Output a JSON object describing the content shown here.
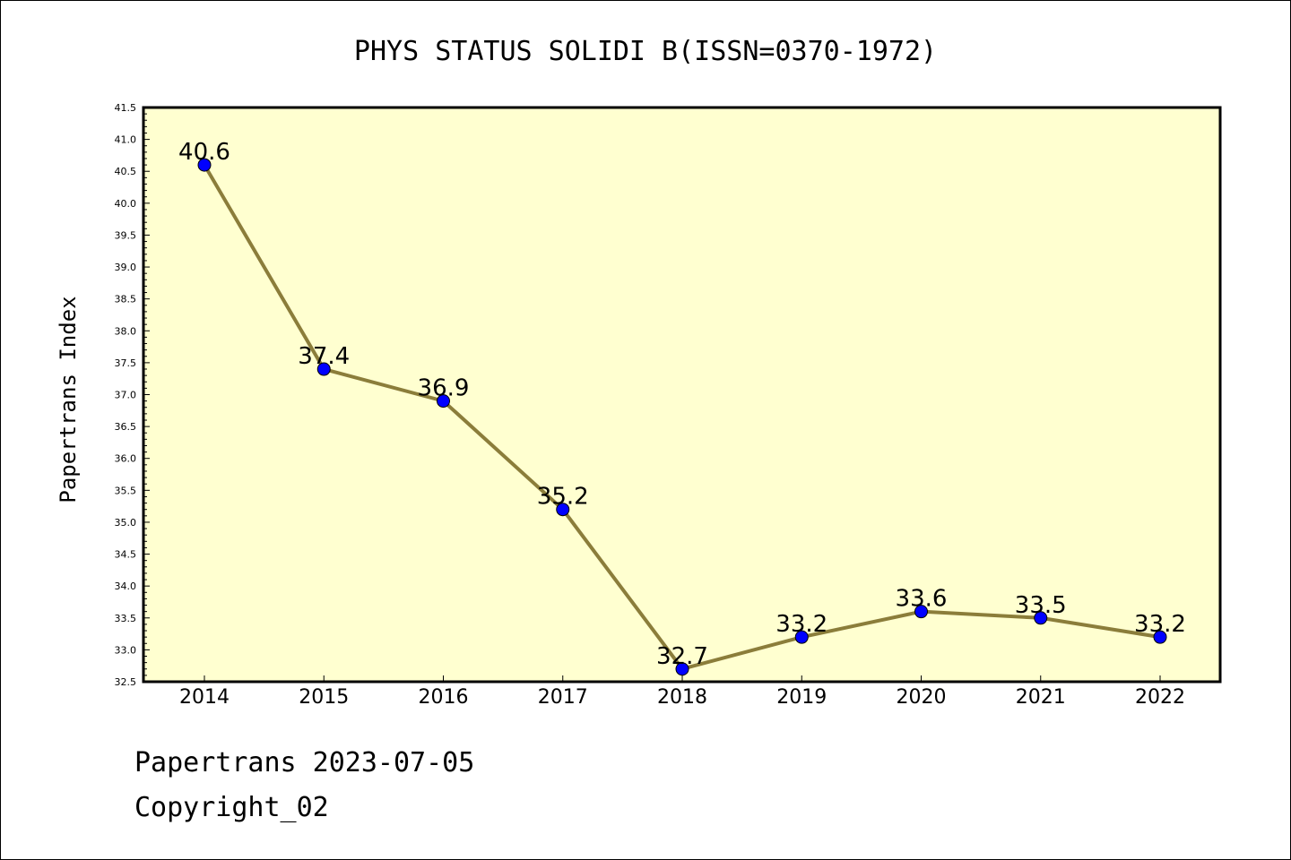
{
  "chart_data": {
    "type": "line",
    "title": "PHYS STATUS SOLIDI B(ISSN=0370-1972)",
    "ylabel": "Papertrans Index",
    "xlabel": "",
    "categories": [
      "2014",
      "2015",
      "2016",
      "2017",
      "2018",
      "2019",
      "2020",
      "2021",
      "2022"
    ],
    "values": [
      40.6,
      37.4,
      36.9,
      35.2,
      32.7,
      33.2,
      33.6,
      33.5,
      33.2
    ],
    "data_labels": [
      "40.6",
      "37.4",
      "36.9",
      "35.2",
      "32.7",
      "33.2",
      "33.6",
      "33.5",
      "33.2"
    ],
    "ylim": [
      32.5,
      41.5
    ],
    "yticks": [
      "32.5",
      "33.0",
      "33.5",
      "34.0",
      "34.5",
      "35.0",
      "35.5",
      "36.0",
      "36.5",
      "37.0",
      "37.5",
      "38.0",
      "38.5",
      "39.0",
      "39.5",
      "40.0",
      "40.5",
      "41.0",
      "41.5"
    ],
    "grid": false,
    "legend": "none",
    "colors": {
      "plot_background": "#ffffd0",
      "line": "#8b7d3a",
      "marker": "#0000ff"
    }
  },
  "footer": {
    "line1": "Papertrans 2023-07-05",
    "line2": "Copyright_02"
  }
}
